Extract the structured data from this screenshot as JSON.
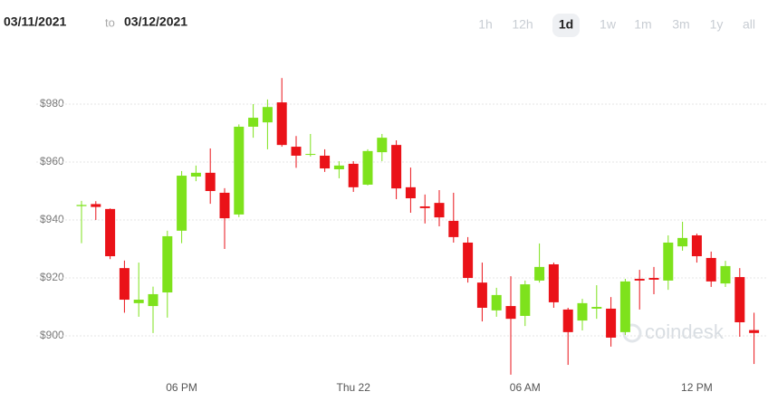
{
  "header": {
    "from_date": "03/11/2021",
    "to_word": "to",
    "to_date": "03/12/2021",
    "ranges": [
      "1h",
      "12h",
      "1d",
      "1w",
      "1m",
      "3m",
      "1y",
      "all"
    ],
    "selected_range_index": 2
  },
  "watermark": "coindesk",
  "chart_data": {
    "type": "candlestick",
    "categories": [
      null,
      null,
      null,
      null,
      null,
      null,
      null,
      "06 PM",
      null,
      null,
      null,
      null,
      null,
      null,
      null,
      null,
      null,
      null,
      null,
      "Thu 22",
      null,
      null,
      null,
      null,
      null,
      null,
      null,
      null,
      null,
      null,
      null,
      "06 AM",
      null,
      null,
      null,
      null,
      null,
      null,
      null,
      null,
      null,
      null,
      null,
      "12 PM",
      null,
      null,
      null,
      null
    ],
    "open": [
      944.8,
      945.5,
      943.8,
      923.4,
      911.3,
      910.3,
      915,
      936.3,
      955,
      956.3,
      949.4,
      941.9,
      972.2,
      973.7,
      980.6,
      965.3,
      962.5,
      962.2,
      957.5,
      959.4,
      952.2,
      963.4,
      965.9,
      951.3,
      944.7,
      945.9,
      939.7,
      932.2,
      918.4,
      908.8,
      910.3,
      906.9,
      919.1,
      924.7,
      909.1,
      905.3,
      909.4,
      909.4,
      901.3,
      919.7,
      920,
      919.1,
      930.9,
      934.7,
      926.9,
      918.1,
      920.3,
      902
    ],
    "high": [
      946.6,
      946.5,
      944,
      926,
      925.3,
      917,
      936.3,
      956.9,
      958.8,
      964.7,
      951,
      973,
      980,
      981.6,
      989,
      969,
      969.7,
      964.4,
      960.3,
      960.3,
      964.4,
      969.7,
      967.5,
      958.1,
      948.8,
      950.3,
      949.4,
      934.1,
      925.3,
      916.6,
      920.6,
      919.1,
      931.9,
      925.3,
      909.7,
      912.8,
      917.5,
      913.4,
      919.7,
      922.8,
      923.8,
      934.7,
      939.4,
      935.3,
      929.1,
      925.9,
      923.4,
      908
    ],
    "low": [
      932,
      940,
      926.5,
      908,
      906.6,
      901,
      906.3,
      932,
      953.4,
      945.6,
      930,
      941,
      968.4,
      964.4,
      965.3,
      958,
      961.9,
      956.6,
      954.4,
      949.7,
      951.9,
      960.3,
      947.2,
      942.5,
      938.8,
      937.8,
      932.2,
      918.4,
      905,
      906.6,
      886.6,
      903.4,
      918.4,
      909.7,
      890,
      901.9,
      905.9,
      896.3,
      900.3,
      909.1,
      914.4,
      915.9,
      929.4,
      925.3,
      916.9,
      916.9,
      899.7,
      890.3
    ],
    "close": [
      945.2,
      944.5,
      927.5,
      912.5,
      912.5,
      914.4,
      934.4,
      955.3,
      956.3,
      950,
      940.6,
      972.2,
      975.3,
      979,
      965.9,
      962.2,
      962.8,
      957.8,
      958.8,
      951.3,
      963.8,
      968.4,
      950.9,
      947.5,
      944.1,
      940.9,
      934.1,
      920,
      909.7,
      914.1,
      905.9,
      917.8,
      923.8,
      911.6,
      901.3,
      911.3,
      910,
      899.4,
      918.8,
      919.1,
      919.4,
      932.2,
      933.8,
      927.5,
      918.8,
      924.1,
      904.7,
      901
    ],
    "up_color": "#7ee21c",
    "down_color": "#ea1218",
    "ylim": [
      884.7,
      992.5
    ],
    "yticks": [
      {
        "value": 900,
        "label": "$900"
      },
      {
        "value": 920,
        "label": "$920"
      },
      {
        "value": 940,
        "label": "$940"
      },
      {
        "value": 960,
        "label": "$960"
      },
      {
        "value": 980,
        "label": "$980"
      }
    ],
    "grid": true
  }
}
